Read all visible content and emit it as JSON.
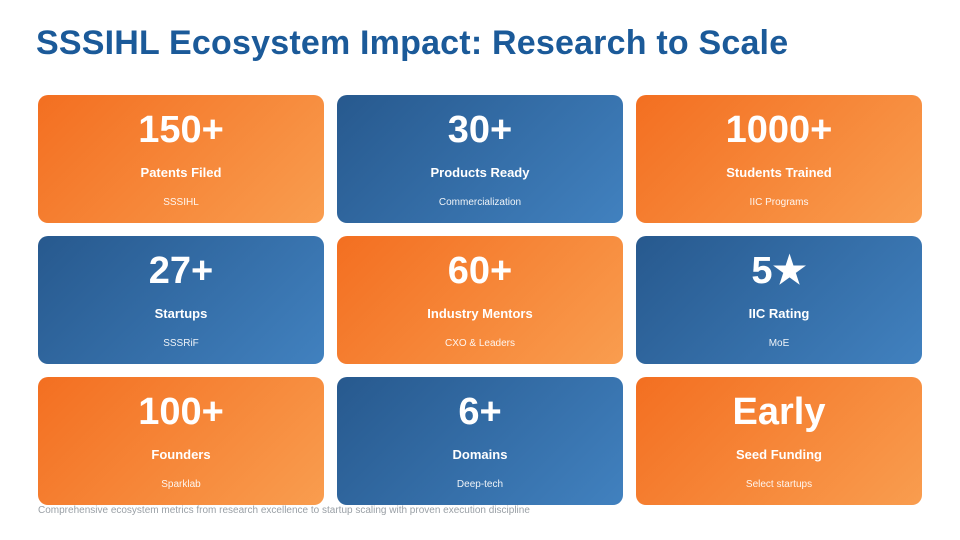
{
  "slide": {
    "title": "SSSIHL Ecosystem Impact: Research to Scale",
    "footer": "Comprehensive ecosystem metrics from research excellence to startup scaling with proven execution discipline",
    "colors": {
      "title_blue": "#1b5a99",
      "orange_gradient_start": "#f36f21",
      "orange_gradient_end": "#f99d4f",
      "blue_gradient_start": "#27598e",
      "blue_gradient_end": "#4181bf",
      "card_text": "#ffffff",
      "footer_text": "#9aa0a6"
    },
    "cards": [
      {
        "value": "150+",
        "label": "Patents Filed",
        "sublabel": "SSSIHL",
        "theme": "orange"
      },
      {
        "value": "30+",
        "label": "Products Ready",
        "sublabel": "Commercialization",
        "theme": "blue"
      },
      {
        "value": "1000+",
        "label": "Students Trained",
        "sublabel": "IIC Programs",
        "theme": "orange"
      },
      {
        "value": "27+",
        "label": "Startups",
        "sublabel": "SSSRiF",
        "theme": "blue"
      },
      {
        "value": "60+",
        "label": "Industry Mentors",
        "sublabel": "CXO & Leaders",
        "theme": "orange"
      },
      {
        "value": "5★",
        "label": "IIC Rating",
        "sublabel": "MoE",
        "theme": "blue"
      },
      {
        "value": "100+",
        "label": "Founders",
        "sublabel": "Sparklab",
        "theme": "orange"
      },
      {
        "value": "6+",
        "label": "Domains",
        "sublabel": "Deep-tech",
        "theme": "blue"
      },
      {
        "value": "Early",
        "label": "Seed Funding",
        "sublabel": "Select startups",
        "theme": "orange"
      }
    ]
  }
}
